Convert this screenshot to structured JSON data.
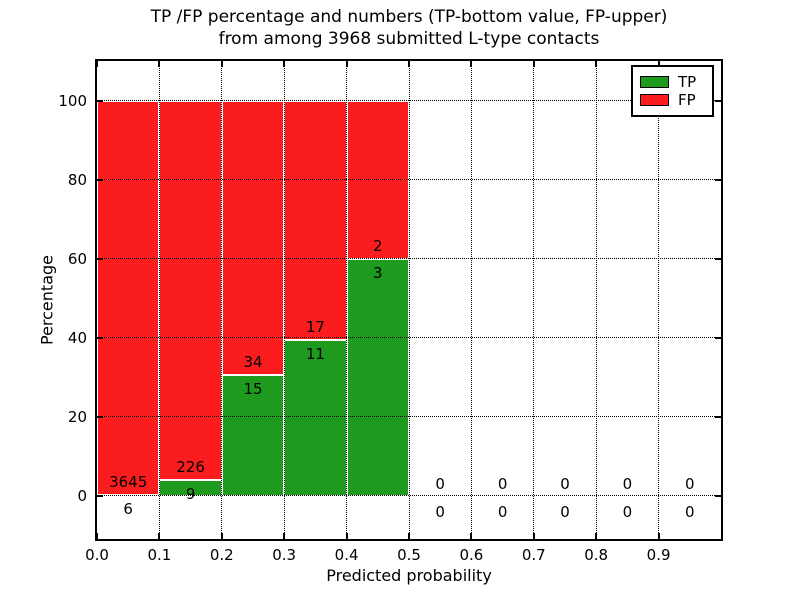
{
  "title": {
    "line1": "TP /FP percentage and numbers (TP-bottom value, FP-upper)",
    "line2": "from among 3968 submitted L-type contacts"
  },
  "colors": {
    "tp_green": "#1e9b1e",
    "fp_red": "#fb1d1d",
    "text": "#000000",
    "background": "#ffffff"
  },
  "chart_data": {
    "type": "bar",
    "stacked": true,
    "title": "TP /FP percentage and numbers (TP-bottom value, FP-upper) from among 3968 submitted L-type contacts",
    "xlabel": "Predicted probability",
    "ylabel": "Percentage",
    "xlim": [
      0.0,
      1.0
    ],
    "ylim": [
      -11,
      110
    ],
    "x_ticks": [
      0.0,
      0.1,
      0.2,
      0.3,
      0.4,
      0.5,
      0.6,
      0.7,
      0.8,
      0.9
    ],
    "x_tick_labels": [
      "0.0",
      "0.1",
      "0.2",
      "0.3",
      "0.4",
      "0.5",
      "0.6",
      "0.7",
      "0.8",
      "0.9"
    ],
    "y_ticks": [
      0,
      20,
      40,
      60,
      80,
      100
    ],
    "y_tick_labels": [
      "0",
      "20",
      "40",
      "60",
      "80",
      "100"
    ],
    "grid": true,
    "grid_style": "dotted",
    "legend": {
      "position": "upper right",
      "entries": [
        {
          "label": "TP",
          "color": "#1e9b1e"
        },
        {
          "label": "FP",
          "color": "#fb1d1d"
        }
      ]
    },
    "total_contacts": 3968,
    "bins": [
      {
        "range": [
          0.0,
          0.1
        ],
        "tp_count": 6,
        "fp_count": 3645,
        "tp_pct": 0.16,
        "fp_pct": 99.84
      },
      {
        "range": [
          0.1,
          0.2
        ],
        "tp_count": 9,
        "fp_count": 226,
        "tp_pct": 3.83,
        "fp_pct": 96.17
      },
      {
        "range": [
          0.2,
          0.3
        ],
        "tp_count": 15,
        "fp_count": 34,
        "tp_pct": 30.61,
        "fp_pct": 69.39
      },
      {
        "range": [
          0.3,
          0.4
        ],
        "tp_count": 11,
        "fp_count": 17,
        "tp_pct": 39.29,
        "fp_pct": 60.71
      },
      {
        "range": [
          0.4,
          0.5
        ],
        "tp_count": 3,
        "fp_count": 2,
        "tp_pct": 60.0,
        "fp_pct": 40.0
      },
      {
        "range": [
          0.5,
          0.6
        ],
        "tp_count": 0,
        "fp_count": 0,
        "tp_pct": 0,
        "fp_pct": 0
      },
      {
        "range": [
          0.6,
          0.7
        ],
        "tp_count": 0,
        "fp_count": 0,
        "tp_pct": 0,
        "fp_pct": 0
      },
      {
        "range": [
          0.7,
          0.8
        ],
        "tp_count": 0,
        "fp_count": 0,
        "tp_pct": 0,
        "fp_pct": 0
      },
      {
        "range": [
          0.8,
          0.9
        ],
        "tp_count": 0,
        "fp_count": 0,
        "tp_pct": 0,
        "fp_pct": 0
      },
      {
        "range": [
          0.9,
          1.0
        ],
        "tp_count": 0,
        "fp_count": 0,
        "tp_pct": 0,
        "fp_pct": 0
      }
    ]
  }
}
